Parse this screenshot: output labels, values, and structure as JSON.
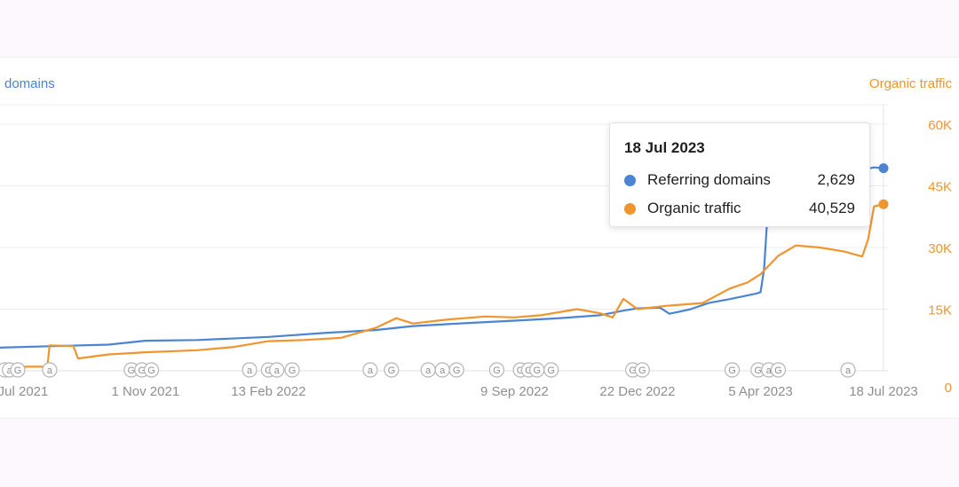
{
  "chart_data": {
    "type": "line",
    "left_axis_title": "domains",
    "right_axis_title": "Organic traffic",
    "right_ticks": [
      "0",
      "15K",
      "30K",
      "45K",
      "60K"
    ],
    "right_ylim": [
      0,
      60000
    ],
    "x_range": [
      "2021-07-01",
      "2023-07-18"
    ],
    "x_ticks": [
      {
        "label": "Jul 2021",
        "date": "2021-07-01"
      },
      {
        "label": "1 Nov 2021",
        "date": "2021-11-01"
      },
      {
        "label": "13 Feb 2022",
        "date": "2022-02-13"
      },
      {
        "label": "9 Sep 2022",
        "date": "2022-09-09"
      },
      {
        "label": "22 Dec 2022",
        "date": "2022-12-22"
      },
      {
        "label": "5 Apr 2023",
        "date": "2023-04-05"
      },
      {
        "label": "18 Jul 2023",
        "date": "2023-07-18"
      }
    ],
    "series": [
      {
        "name": "Referring domains",
        "color": "#4a84d2",
        "points": [
          [
            "2021-07-01",
            300
          ],
          [
            "2021-08-15",
            320
          ],
          [
            "2021-10-01",
            340
          ],
          [
            "2021-11-01",
            390
          ],
          [
            "2021-12-15",
            400
          ],
          [
            "2022-02-13",
            440
          ],
          [
            "2022-04-01",
            490
          ],
          [
            "2022-05-15",
            530
          ],
          [
            "2022-06-15",
            580
          ],
          [
            "2022-08-01",
            620
          ],
          [
            "2022-09-09",
            650
          ],
          [
            "2022-10-15",
            680
          ],
          [
            "2022-11-20",
            720
          ],
          [
            "2022-12-10",
            780
          ],
          [
            "2022-12-22",
            810
          ],
          [
            "2023-01-10",
            820
          ],
          [
            "2023-01-18",
            740
          ],
          [
            "2023-02-05",
            800
          ],
          [
            "2023-02-20",
            880
          ],
          [
            "2023-03-10",
            930
          ],
          [
            "2023-04-01",
            1000
          ],
          [
            "2023-04-05",
            1020
          ],
          [
            "2023-04-08",
            1320
          ],
          [
            "2023-04-12",
            2300
          ],
          [
            "2023-05-15",
            2450
          ],
          [
            "2023-06-10",
            2560
          ],
          [
            "2023-06-25",
            2590
          ],
          [
            "2023-07-10",
            2640
          ],
          [
            "2023-07-18",
            2629
          ]
        ]
      },
      {
        "name": "Organic traffic",
        "color": "#f0952e",
        "points": [
          [
            "2021-07-01",
            1000
          ],
          [
            "2021-08-10",
            1000
          ],
          [
            "2021-08-12",
            6200
          ],
          [
            "2021-09-01",
            6000
          ],
          [
            "2021-09-05",
            3000
          ],
          [
            "2021-10-01",
            4000
          ],
          [
            "2021-11-01",
            4500
          ],
          [
            "2021-12-15",
            5000
          ],
          [
            "2022-01-15",
            5800
          ],
          [
            "2022-02-13",
            7200
          ],
          [
            "2022-03-15",
            7500
          ],
          [
            "2022-04-15",
            8000
          ],
          [
            "2022-05-15",
            10500
          ],
          [
            "2022-06-01",
            12800
          ],
          [
            "2022-06-15",
            11500
          ],
          [
            "2022-07-15",
            12500
          ],
          [
            "2022-08-15",
            13200
          ],
          [
            "2022-09-09",
            13000
          ],
          [
            "2022-10-01",
            13500
          ],
          [
            "2022-11-01",
            15000
          ],
          [
            "2022-11-20",
            14000
          ],
          [
            "2022-12-01",
            13000
          ],
          [
            "2022-12-10",
            17500
          ],
          [
            "2022-12-22",
            15000
          ],
          [
            "2023-01-15",
            15800
          ],
          [
            "2023-02-15",
            16500
          ],
          [
            "2023-03-10",
            20000
          ],
          [
            "2023-03-25",
            21500
          ],
          [
            "2023-04-05",
            23500
          ],
          [
            "2023-04-20",
            28000
          ],
          [
            "2023-05-05",
            30500
          ],
          [
            "2023-05-25",
            30000
          ],
          [
            "2023-06-15",
            29000
          ],
          [
            "2023-06-30",
            27800
          ],
          [
            "2023-07-05",
            32000
          ],
          [
            "2023-07-10",
            40000
          ],
          [
            "2023-07-18",
            40529
          ]
        ]
      }
    ],
    "events": [
      {
        "type": "a",
        "date": "2021-07-05"
      },
      {
        "type": "a",
        "date": "2021-07-09"
      },
      {
        "type": "G",
        "date": "2021-07-16"
      },
      {
        "type": "a",
        "date": "2021-08-12"
      },
      {
        "type": "G",
        "date": "2021-10-20"
      },
      {
        "type": "G",
        "date": "2021-10-29"
      },
      {
        "type": "G",
        "date": "2021-11-06"
      },
      {
        "type": "a",
        "date": "2022-01-28"
      },
      {
        "type": "G",
        "date": "2022-02-13"
      },
      {
        "type": "a",
        "date": "2022-02-20"
      },
      {
        "type": "G",
        "date": "2022-03-05"
      },
      {
        "type": "a",
        "date": "2022-05-10"
      },
      {
        "type": "G",
        "date": "2022-05-28"
      },
      {
        "type": "a",
        "date": "2022-06-28"
      },
      {
        "type": "a",
        "date": "2022-07-10"
      },
      {
        "type": "G",
        "date": "2022-07-22"
      },
      {
        "type": "G",
        "date": "2022-08-25"
      },
      {
        "type": "G",
        "date": "2022-09-14"
      },
      {
        "type": "G",
        "date": "2022-09-21"
      },
      {
        "type": "G",
        "date": "2022-09-28"
      },
      {
        "type": "G",
        "date": "2022-10-10"
      },
      {
        "type": "G",
        "date": "2022-12-18"
      },
      {
        "type": "G",
        "date": "2022-12-26"
      },
      {
        "type": "G",
        "date": "2023-03-12"
      },
      {
        "type": "G",
        "date": "2023-04-03"
      },
      {
        "type": "a",
        "date": "2023-04-12"
      },
      {
        "type": "G",
        "date": "2023-04-20"
      },
      {
        "type": "a",
        "date": "2023-06-18"
      }
    ],
    "tooltip": {
      "date": "18 Jul 2023",
      "rows": [
        {
          "name": "Referring domains",
          "value": "2,629",
          "color": "#4a84d2"
        },
        {
          "name": "Organic traffic",
          "value": "40,529",
          "color": "#f0952e"
        }
      ]
    },
    "grid": true
  }
}
